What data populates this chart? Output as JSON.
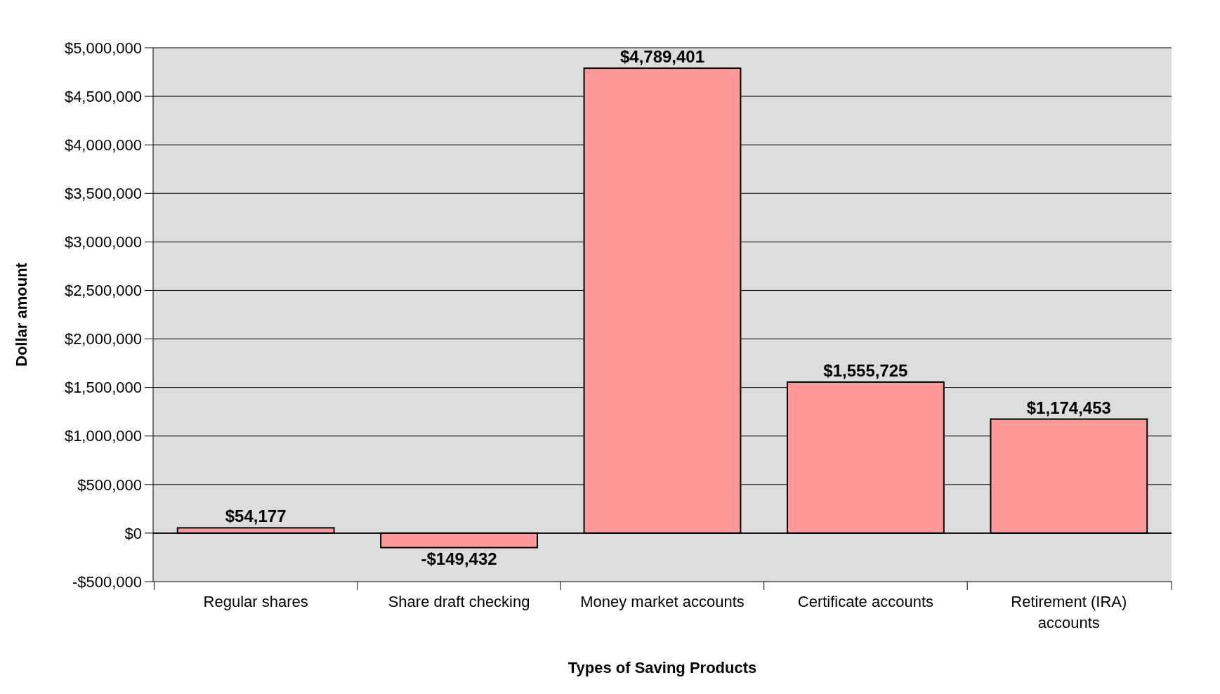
{
  "chart_data": {
    "type": "bar",
    "xlabel": "Types of Saving Products",
    "ylabel": "Dollar amount",
    "categories": [
      "Regular shares",
      "Share draft checking",
      "Money market accounts",
      "Certificate accounts",
      "Retirement (IRA) accounts"
    ],
    "values": [
      54177,
      -149432,
      4789401,
      1555725,
      1174453
    ],
    "color": "#ff9999",
    "value_labels": [
      "$54,177",
      "-$149,432",
      "$4,789,401",
      "$1,555,725",
      "$1,174,453"
    ],
    "ylim": [
      -500000,
      5000000
    ],
    "yticks": [
      {
        "value": -500000,
        "label": "-$500,000"
      },
      {
        "value": 0,
        "label": "$0"
      },
      {
        "value": 500000,
        "label": "$500,000"
      },
      {
        "value": 1000000,
        "label": "$1,000,000"
      },
      {
        "value": 1500000,
        "label": "$1,500,000"
      },
      {
        "value": 2000000,
        "label": "$2,000,000"
      },
      {
        "value": 2500000,
        "label": "$2,500,000"
      },
      {
        "value": 3000000,
        "label": "$3,000,000"
      },
      {
        "value": 3500000,
        "label": "$3,500,000"
      },
      {
        "value": 4000000,
        "label": "$4,000,000"
      },
      {
        "value": 4500000,
        "label": "$4,500,000"
      },
      {
        "value": 5000000,
        "label": "$5,000,000"
      }
    ],
    "grid": "y"
  }
}
